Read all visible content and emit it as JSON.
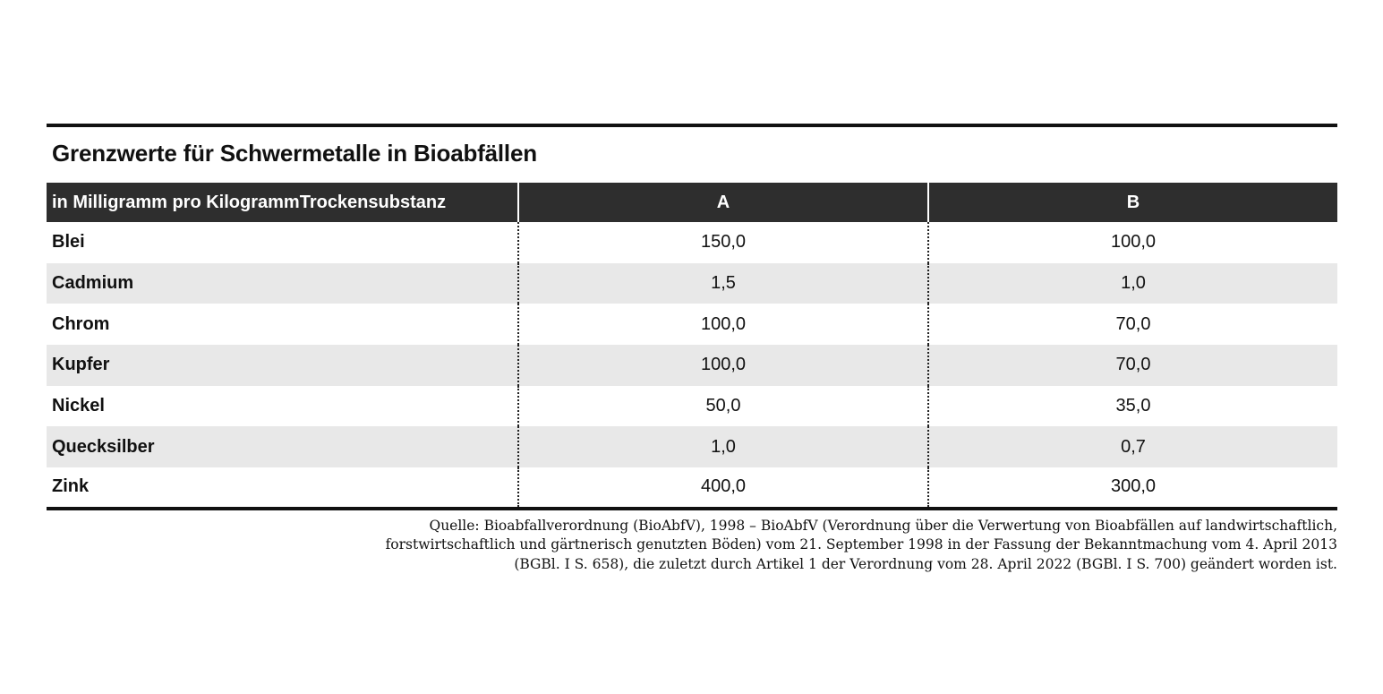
{
  "title": "Grenzwerte für Schwermetalle in Bioabfällen",
  "table": {
    "header": {
      "label": "in Milligramm pro KilogrammTrockensubstanz",
      "col_a": "A",
      "col_b": "B"
    },
    "rows": [
      {
        "label": "Blei",
        "a": "150,0",
        "b": "100,0"
      },
      {
        "label": "Cadmium",
        "a": "1,5",
        "b": "1,0"
      },
      {
        "label": "Chrom",
        "a": "100,0",
        "b": "70,0"
      },
      {
        "label": "Kupfer",
        "a": "100,0",
        "b": "70,0"
      },
      {
        "label": "Nickel",
        "a": "50,0",
        "b": "35,0"
      },
      {
        "label": "Quecksilber",
        "a": "1,0",
        "b": "0,7"
      },
      {
        "label": "Zink",
        "a": "400,0",
        "b": "300,0"
      }
    ]
  },
  "source": {
    "line1": "Quelle: Bioabfallverordnung (BioAbfV), 1998 – BioAbfV (Verordnung über die Verwertung von Bioabfällen auf landwirtschaftlich,",
    "line2": "forstwirtschaftlich und gärtnerisch genutzten Böden) vom 21. September 1998  in der Fassung der Bekanntmachung vom 4. April 2013",
    "line3": "(BGBl. I S. 658), die zuletzt durch Artikel 1 der Verordnung vom 28. April 2022 (BGBl. I S. 700) geändert worden ist."
  },
  "colors": {
    "header_bg": "#2e2e2e",
    "header_text": "#ffffff",
    "row_alt_bg": "#e8e8e8",
    "rule": "#111111",
    "text": "#111111"
  },
  "chart_data": {
    "type": "table",
    "title": "Grenzwerte für Schwermetalle in Bioabfällen",
    "unit_label": "in Milligramm pro KilogrammTrockensubstanz",
    "columns": [
      "A",
      "B"
    ],
    "rows": [
      {
        "substance": "Blei",
        "A": 150.0,
        "B": 100.0
      },
      {
        "substance": "Cadmium",
        "A": 1.5,
        "B": 1.0
      },
      {
        "substance": "Chrom",
        "A": 100.0,
        "B": 70.0
      },
      {
        "substance": "Kupfer",
        "A": 100.0,
        "B": 70.0
      },
      {
        "substance": "Nickel",
        "A": 50.0,
        "B": 35.0
      },
      {
        "substance": "Quecksilber",
        "A": 1.0,
        "B": 0.7
      },
      {
        "substance": "Zink",
        "A": 400.0,
        "B": 300.0
      }
    ],
    "source": "Quelle: Bioabfallverordnung (BioAbfV), 1998 – BioAbfV (Verordnung über die Verwertung von Bioabfällen auf landwirtschaftlich, forstwirtschaftlich und gärtnerisch genutzten Böden) vom 21. September 1998 in der Fassung der Bekanntmachung vom 4. April 2013 (BGBl. I S. 658), die zuletzt durch Artikel 1 der Verordnung vom 28. April 2022 (BGBl. I S. 700) geändert worden ist."
  }
}
